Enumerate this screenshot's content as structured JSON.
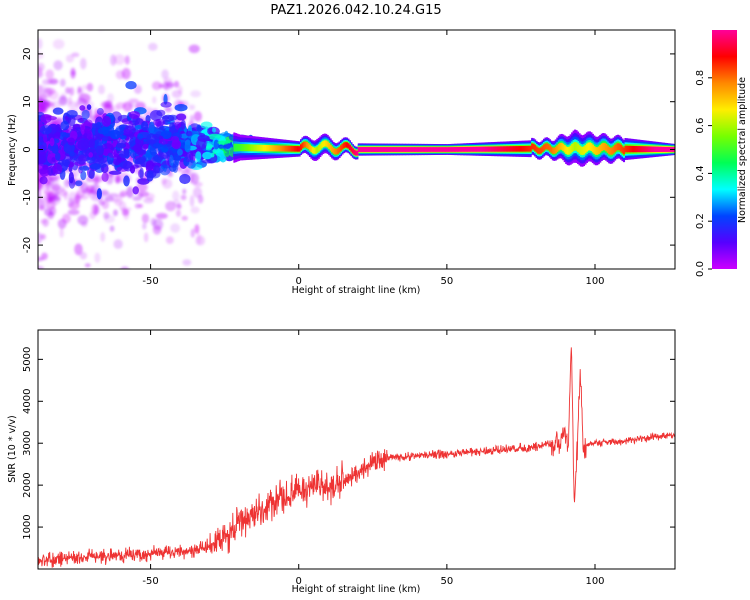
{
  "figure": {
    "title": "PAZ1.2026.042.10.24.G15"
  },
  "chart_data": [
    {
      "type": "heatmap",
      "title": "PAZ1.2026.042.10.24.G15",
      "xlabel": "Height of straight line (km)",
      "ylabel": "Frequency (Hz)",
      "xlim": [
        -88,
        127
      ],
      "ylim": [
        -25,
        25
      ],
      "x_ticks": [
        -50,
        0,
        50,
        100
      ],
      "y_ticks": [
        -20,
        -10,
        0,
        10,
        20
      ],
      "colorbar": {
        "label": "Normalized spectral amplitude",
        "range": [
          0,
          1
        ],
        "ticks": [
          0.0,
          0.2,
          0.4,
          0.6,
          0.8
        ],
        "colormap": [
          "#cc00ff",
          "#5500ff",
          "#0044ff",
          "#00ffff",
          "#00ff55",
          "#77ff00",
          "#ffee00",
          "#ff8800",
          "#ff0000",
          "#ff0099"
        ]
      },
      "description_points": [
        {
          "height_km": -80,
          "peak_freq_hz": 1.0,
          "spread_hz": 6.0,
          "amplitude": 0.15
        },
        {
          "height_km": -60,
          "peak_freq_hz": 1.5,
          "spread_hz": 6.0,
          "amplitude": 0.18
        },
        {
          "height_km": -40,
          "peak_freq_hz": 1.0,
          "spread_hz": 5.0,
          "amplitude": 0.2
        },
        {
          "height_km": -30,
          "peak_freq_hz": 1.0,
          "spread_hz": 3.0,
          "amplitude": 0.3
        },
        {
          "height_km": -20,
          "peak_freq_hz": 1.0,
          "spread_hz": 1.5,
          "amplitude": 0.4
        },
        {
          "height_km": 0,
          "peak_freq_hz": 0.3,
          "spread_hz": 0.8,
          "amplitude": 0.8
        },
        {
          "height_km": 6,
          "peak_freq_hz": 1.5,
          "spread_hz": 1.2,
          "amplitude": 0.5
        },
        {
          "height_km": 20,
          "peak_freq_hz": 0.0,
          "spread_hz": 0.6,
          "amplitude": 0.9
        },
        {
          "height_km": 50,
          "peak_freq_hz": 0.0,
          "spread_hz": 0.5,
          "amplitude": 1.0
        },
        {
          "height_km": 85,
          "peak_freq_hz": 0.5,
          "spread_hz": 1.0,
          "amplitude": 0.7
        },
        {
          "height_km": 93,
          "peak_freq_hz": 0.5,
          "spread_hz": 2.0,
          "amplitude": 0.5
        },
        {
          "height_km": 127,
          "peak_freq_hz": 0.0,
          "spread_hz": 0.5,
          "amplitude": 1.0
        }
      ]
    },
    {
      "type": "line",
      "xlabel": "Height of straight line (km)",
      "ylabel": "SNR (10 * v/v)",
      "xlim": [
        -88,
        127
      ],
      "ylim": [
        0,
        5700
      ],
      "x_ticks": [
        -50,
        0,
        50,
        100
      ],
      "y_ticks": [
        1000,
        2000,
        3000,
        4000,
        5000
      ],
      "color": "#ee3333",
      "series": [
        {
          "name": "SNR",
          "x": [
            -88,
            -70,
            -50,
            -35,
            -30,
            -25,
            -20,
            -15,
            -10,
            -5,
            0,
            5,
            10,
            15,
            20,
            25,
            30,
            40,
            50,
            60,
            70,
            80,
            85,
            88,
            90,
            91,
            92,
            93,
            94,
            95,
            96,
            100,
            110,
            120,
            127
          ],
          "y": [
            200,
            300,
            350,
            450,
            550,
            700,
            1100,
            1300,
            1500,
            1700,
            1850,
            2000,
            1900,
            2100,
            2300,
            2550,
            2650,
            2700,
            2750,
            2800,
            2850,
            2900,
            3000,
            3100,
            3300,
            3000,
            5400,
            1500,
            2800,
            4800,
            2900,
            3000,
            3050,
            3150,
            3200
          ]
        }
      ]
    }
  ]
}
